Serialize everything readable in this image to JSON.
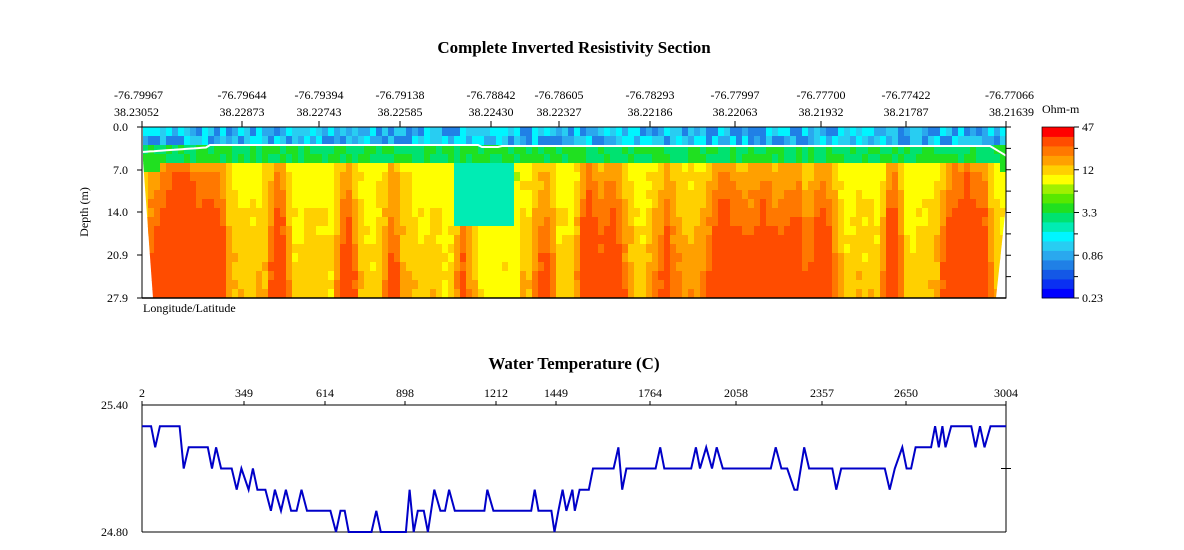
{
  "chart_data": [
    {
      "type": "heatmap",
      "title": "Complete Inverted Resistivity Section",
      "xlabel": "Longitude/Latitude",
      "ylabel": "Depth (m)",
      "x_ticks": [
        {
          "lon": "-76.79967",
          "lat": "38.23052"
        },
        {
          "lon": "-76.79644",
          "lat": "38.22873"
        },
        {
          "lon": "-76.79394",
          "lat": "38.22743"
        },
        {
          "lon": "-76.79138",
          "lat": "38.22585"
        },
        {
          "lon": "-76.78842",
          "lat": "38.22430"
        },
        {
          "lon": "-76.78605",
          "lat": "38.22327"
        },
        {
          "lon": "-76.78293",
          "lat": "38.22186"
        },
        {
          "lon": "-76.77997",
          "lat": "38.22063"
        },
        {
          "lon": "-76.77700",
          "lat": "38.21932"
        },
        {
          "lon": "-76.77422",
          "lat": "38.21787"
        },
        {
          "lon": "-76.77066",
          "lat": "38.21639"
        }
      ],
      "y_ticks": [
        "0.0",
        "7.0",
        "14.0",
        "20.9",
        "27.9"
      ],
      "ylim": [
        0,
        27.9
      ],
      "colorbar": {
        "unit": "Ohm-m",
        "labels": [
          "47",
          "12",
          "3.3",
          "0.86",
          "0.23"
        ],
        "scale": "log",
        "range": [
          0.23,
          47
        ],
        "colors": [
          "#0000ff",
          "#0a30f2",
          "#1458e6",
          "#2080e6",
          "#2aa8ee",
          "#28cdf2",
          "#00f5ff",
          "#00ecb4",
          "#00e270",
          "#20e020",
          "#58e800",
          "#a0f000",
          "#ffff00",
          "#ffd000",
          "#ffa000",
          "#ff7800",
          "#ff4c00",
          "#ff0000"
        ]
      },
      "water_line_color": "#ffffff"
    },
    {
      "type": "line",
      "title": "Water Temperature (C)",
      "x_ticks": [
        "2",
        "349",
        "614",
        "898",
        "1212",
        "1449",
        "1764",
        "2058",
        "2357",
        "2650",
        "3004"
      ],
      "y_ticks": [
        "25.40",
        "24.80"
      ],
      "ylim": [
        24.8,
        25.4
      ],
      "xlim": [
        2,
        3004
      ],
      "line_color": "#0000c8",
      "points": [
        [
          2,
          25.3
        ],
        [
          33,
          25.3
        ],
        [
          47,
          25.2
        ],
        [
          63,
          25.3
        ],
        [
          130,
          25.3
        ],
        [
          144,
          25.1
        ],
        [
          161,
          25.2
        ],
        [
          226,
          25.2
        ],
        [
          240,
          25.1
        ],
        [
          254,
          25.2
        ],
        [
          271,
          25.1
        ],
        [
          307,
          25.1
        ],
        [
          324,
          25.0
        ],
        [
          340,
          25.1
        ],
        [
          364,
          25.0
        ],
        [
          378,
          25.1
        ],
        [
          393,
          25.0
        ],
        [
          419,
          25.0
        ],
        [
          437,
          24.9
        ],
        [
          450,
          25.0
        ],
        [
          470,
          24.9
        ],
        [
          486,
          25.0
        ],
        [
          503,
          24.9
        ],
        [
          521,
          24.9
        ],
        [
          537,
          25.0
        ],
        [
          555,
          24.9
        ],
        [
          633,
          24.9
        ],
        [
          653,
          24.8
        ],
        [
          669,
          24.9
        ],
        [
          684,
          24.9
        ],
        [
          698,
          24.8
        ],
        [
          779,
          24.8
        ],
        [
          796,
          24.9
        ],
        [
          812,
          24.8
        ],
        [
          901,
          24.8
        ],
        [
          914,
          25.0
        ],
        [
          928,
          24.8
        ],
        [
          942,
          24.9
        ],
        [
          963,
          24.9
        ],
        [
          977,
          24.8
        ],
        [
          999,
          25.0
        ],
        [
          1020,
          24.9
        ],
        [
          1036,
          24.9
        ],
        [
          1050,
          25.0
        ],
        [
          1070,
          24.9
        ],
        [
          1172,
          24.9
        ],
        [
          1182,
          25.0
        ],
        [
          1203,
          24.9
        ],
        [
          1351,
          24.9
        ],
        [
          1365,
          25.0
        ],
        [
          1380,
          24.9
        ],
        [
          1431,
          24.9
        ],
        [
          1443,
          24.8
        ],
        [
          1457,
          24.9
        ],
        [
          1471,
          25.0
        ],
        [
          1484,
          24.9
        ],
        [
          1504,
          25.0
        ],
        [
          1512,
          24.9
        ],
        [
          1528,
          25.0
        ],
        [
          1559,
          25.0
        ],
        [
          1573,
          25.1
        ],
        [
          1642,
          25.1
        ],
        [
          1658,
          25.2
        ],
        [
          1671,
          25.0
        ],
        [
          1685,
          25.1
        ],
        [
          1783,
          25.1
        ],
        [
          1799,
          25.2
        ],
        [
          1813,
          25.1
        ],
        [
          1905,
          25.1
        ],
        [
          1921,
          25.2
        ],
        [
          1935,
          25.1
        ],
        [
          1956,
          25.2
        ],
        [
          1976,
          25.1
        ],
        [
          1992,
          25.2
        ],
        [
          2013,
          25.1
        ],
        [
          2179,
          25.1
        ],
        [
          2196,
          25.2
        ],
        [
          2216,
          25.1
        ],
        [
          2236,
          25.1
        ],
        [
          2261,
          25.0
        ],
        [
          2271,
          25.0
        ],
        [
          2295,
          25.2
        ],
        [
          2312,
          25.1
        ],
        [
          2393,
          25.1
        ],
        [
          2407,
          25.0
        ],
        [
          2424,
          25.1
        ],
        [
          2576,
          25.1
        ],
        [
          2593,
          25.0
        ],
        [
          2611,
          25.1
        ],
        [
          2637,
          25.2
        ],
        [
          2652,
          25.1
        ],
        [
          2668,
          25.1
        ],
        [
          2684,
          25.2
        ],
        [
          2739,
          25.2
        ],
        [
          2753,
          25.3
        ],
        [
          2766,
          25.2
        ],
        [
          2779,
          25.3
        ],
        [
          2790,
          25.2
        ],
        [
          2810,
          25.3
        ],
        [
          2881,
          25.3
        ],
        [
          2896,
          25.2
        ],
        [
          2912,
          25.3
        ],
        [
          2928,
          25.2
        ],
        [
          2949,
          25.3
        ],
        [
          3004,
          25.3
        ]
      ]
    }
  ]
}
